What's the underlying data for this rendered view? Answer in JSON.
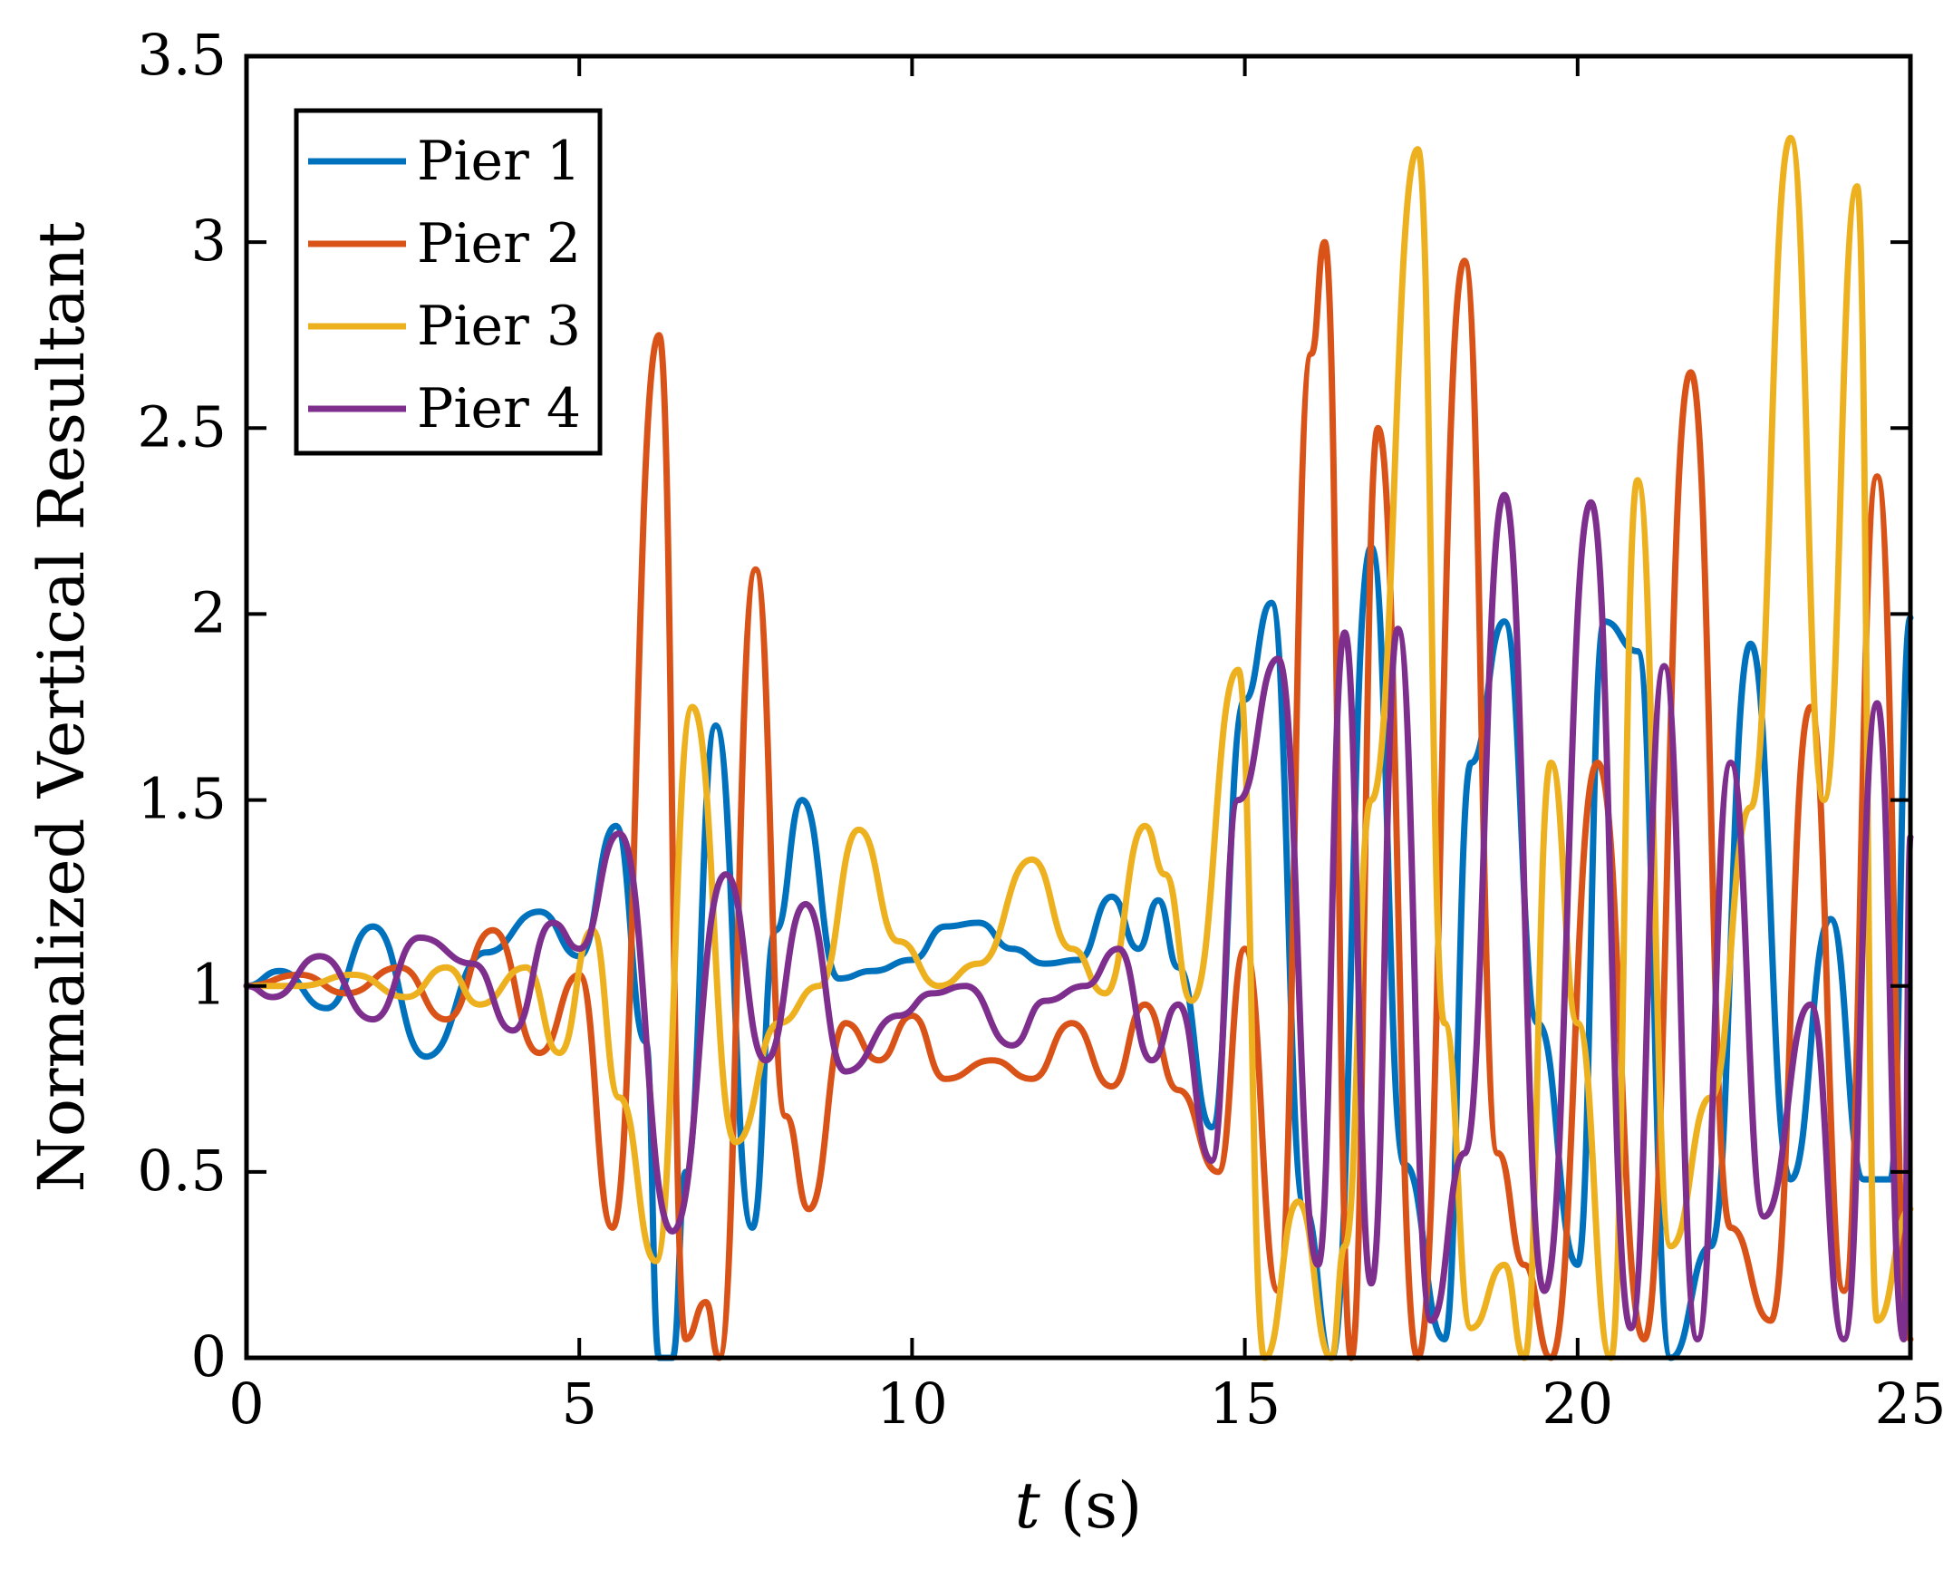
{
  "chart_data": {
    "type": "line",
    "title": "",
    "xlabel_var": "t",
    "xlabel_unit": "(s)",
    "ylabel": "Normalized Vertical Resultant",
    "xlim": [
      0,
      25
    ],
    "ylim": [
      0,
      3.5
    ],
    "xticks": [
      0,
      5,
      10,
      15,
      20,
      25
    ],
    "xtick_labels": [
      "0",
      "5",
      "10",
      "15",
      "20",
      "25"
    ],
    "yticks": [
      0,
      0.5,
      1,
      1.5,
      2,
      2.5,
      3,
      3.5
    ],
    "ytick_labels": [
      "0",
      "0.5",
      "1",
      "1.5",
      "2",
      "2.5",
      "3",
      "3.5"
    ],
    "grid": false,
    "legend_position": "top-left",
    "series": [
      {
        "name": "Pier 1",
        "color": "#0072BD",
        "x": [
          0,
          0.5,
          1.2,
          1.9,
          2.7,
          3.6,
          4.4,
          5.0,
          5.55,
          6.0,
          6.2,
          6.4,
          6.6,
          7.05,
          7.6,
          7.95,
          8.35,
          8.9,
          9.4,
          10.0,
          10.5,
          11.0,
          11.5,
          12.0,
          12.5,
          13.0,
          13.4,
          13.7,
          14.0,
          14.5,
          15.0,
          15.4,
          15.9,
          16.3,
          16.9,
          17.4,
          18.0,
          18.4,
          18.9,
          19.4,
          20.0,
          20.4,
          20.9,
          21.4,
          22.0,
          22.6,
          23.2,
          23.8,
          24.3,
          24.7,
          25.0
        ],
        "values": [
          1.0,
          1.04,
          0.94,
          1.16,
          0.81,
          1.09,
          1.2,
          1.08,
          1.43,
          0.85,
          0.0,
          0.0,
          0.5,
          1.7,
          0.35,
          1.15,
          1.5,
          1.02,
          1.04,
          1.07,
          1.16,
          1.17,
          1.1,
          1.06,
          1.07,
          1.24,
          1.1,
          1.23,
          1.05,
          0.62,
          1.77,
          2.03,
          0.4,
          0.0,
          2.18,
          0.52,
          0.05,
          1.6,
          1.98,
          0.9,
          0.25,
          1.98,
          1.9,
          0.0,
          0.3,
          1.92,
          0.48,
          1.18,
          0.48,
          0.48,
          1.99
        ]
      },
      {
        "name": "Pier 2",
        "color": "#D95319",
        "x": [
          0,
          0.8,
          1.5,
          2.3,
          3.0,
          3.7,
          4.4,
          5.0,
          5.5,
          6.2,
          6.6,
          6.9,
          7.1,
          7.65,
          8.1,
          8.45,
          9.0,
          9.5,
          10.0,
          10.5,
          11.2,
          11.8,
          12.4,
          13.0,
          13.5,
          14.0,
          14.6,
          15.0,
          15.5,
          16.0,
          16.2,
          16.6,
          17.0,
          17.6,
          18.3,
          18.8,
          19.2,
          19.6,
          20.3,
          21.0,
          21.7,
          22.3,
          22.9,
          23.5,
          24.0,
          24.5,
          25.0
        ],
        "values": [
          1.0,
          1.03,
          0.98,
          1.05,
          0.91,
          1.15,
          0.82,
          1.03,
          0.35,
          2.75,
          0.05,
          0.15,
          0.0,
          2.12,
          0.65,
          0.4,
          0.9,
          0.8,
          0.92,
          0.75,
          0.8,
          0.75,
          0.9,
          0.73,
          0.95,
          0.72,
          0.5,
          1.1,
          0.18,
          2.7,
          3.0,
          0.0,
          2.5,
          0.0,
          2.95,
          0.55,
          0.25,
          0.0,
          1.6,
          0.05,
          2.65,
          0.35,
          0.1,
          1.75,
          0.18,
          2.37,
          0.05
        ]
      },
      {
        "name": "Pier 3",
        "color": "#EDB120",
        "x": [
          0,
          0.8,
          1.6,
          2.4,
          3.0,
          3.5,
          4.2,
          4.7,
          5.2,
          5.6,
          6.15,
          6.7,
          7.35,
          8.0,
          8.6,
          9.2,
          9.8,
          10.4,
          11.0,
          11.8,
          12.4,
          12.9,
          13.5,
          13.8,
          14.2,
          14.9,
          15.3,
          15.8,
          16.3,
          16.5,
          16.9,
          17.6,
          18.0,
          18.4,
          18.9,
          19.2,
          19.6,
          20.0,
          20.5,
          20.9,
          21.4,
          22.0,
          22.6,
          23.2,
          23.7,
          24.2,
          24.5,
          25.0
        ],
        "values": [
          1.0,
          1.0,
          1.03,
          0.97,
          1.05,
          0.95,
          1.05,
          0.82,
          1.15,
          0.7,
          0.26,
          1.75,
          0.58,
          0.9,
          1.0,
          1.42,
          1.12,
          1.0,
          1.06,
          1.34,
          1.1,
          0.98,
          1.43,
          1.3,
          0.96,
          1.85,
          0.0,
          0.42,
          0.0,
          0.3,
          1.5,
          3.25,
          0.9,
          0.08,
          0.25,
          0.0,
          1.6,
          0.9,
          0.0,
          2.36,
          0.3,
          0.7,
          1.48,
          3.28,
          1.5,
          3.15,
          0.1,
          0.4
        ]
      },
      {
        "name": "Pier 4",
        "color": "#7E2F8E",
        "x": [
          0,
          0.4,
          1.1,
          1.9,
          2.6,
          3.4,
          4.0,
          4.6,
          5.0,
          5.6,
          6.4,
          7.2,
          7.8,
          8.4,
          9.0,
          9.8,
          10.3,
          10.8,
          11.5,
          12.0,
          12.6,
          13.1,
          13.6,
          14.0,
          14.5,
          14.9,
          15.5,
          16.1,
          16.5,
          16.9,
          17.3,
          17.8,
          18.3,
          18.9,
          19.5,
          20.2,
          20.8,
          21.3,
          21.8,
          22.3,
          22.8,
          23.5,
          24.0,
          24.5,
          24.9,
          25.0
        ],
        "values": [
          1.0,
          0.97,
          1.08,
          0.91,
          1.13,
          1.06,
          0.88,
          1.17,
          1.1,
          1.41,
          0.34,
          1.3,
          0.8,
          1.22,
          0.77,
          0.92,
          0.98,
          1.0,
          0.84,
          0.96,
          1.0,
          1.1,
          0.8,
          0.95,
          0.53,
          1.5,
          1.88,
          0.25,
          1.95,
          0.2,
          1.96,
          0.1,
          0.55,
          2.32,
          0.18,
          2.3,
          0.08,
          1.86,
          0.05,
          1.6,
          0.38,
          0.95,
          0.05,
          1.76,
          0.05,
          1.4
        ]
      }
    ]
  }
}
